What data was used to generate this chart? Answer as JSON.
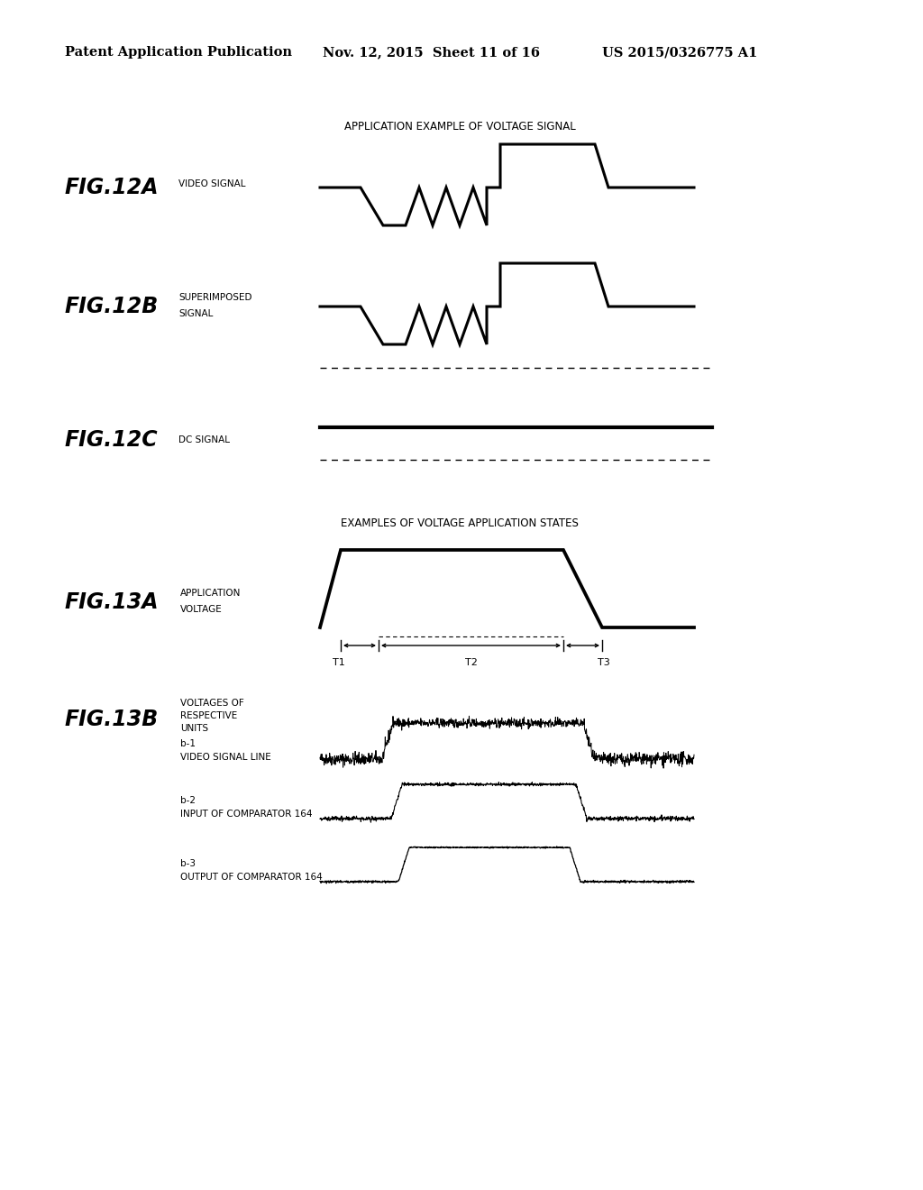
{
  "bg_color": "#ffffff",
  "header_text": "Patent Application Publication",
  "header_date": "Nov. 12, 2015  Sheet 11 of 16",
  "header_patent": "US 2015/0326775 A1",
  "fig12_title": "APPLICATION EXAMPLE OF VOLTAGE SIGNAL",
  "fig13_title": "EXAMPLES OF VOLTAGE APPLICATION STATES",
  "fig12A_label": "FIG.12A",
  "fig12A_sub": "VIDEO SIGNAL",
  "fig12B_label": "FIG.12B",
  "fig12B_sub1": "SUPERIMPOSED",
  "fig12B_sub2": "SIGNAL",
  "fig12C_label": "FIG.12C",
  "fig12C_sub": "DC SIGNAL",
  "fig13A_label": "FIG.13A",
  "fig13A_sub1": "APPLICATION",
  "fig13A_sub2": "VOLTAGE",
  "fig13B_label": "FIG.13B",
  "fig13B_sub1": "VOLTAGES OF",
  "fig13B_sub2": "RESPECTIVE",
  "fig13B_sub3": "UNITS",
  "fig13B_b1": "b-1",
  "fig13B_b1_sub": "VIDEO SIGNAL LINE",
  "fig13B_b2": "b-2",
  "fig13B_b2_sub": "INPUT OF COMPARATOR 164",
  "fig13B_b3": "b-3",
  "fig13B_b3_sub": "OUTPUT OF COMPARATOR 164"
}
